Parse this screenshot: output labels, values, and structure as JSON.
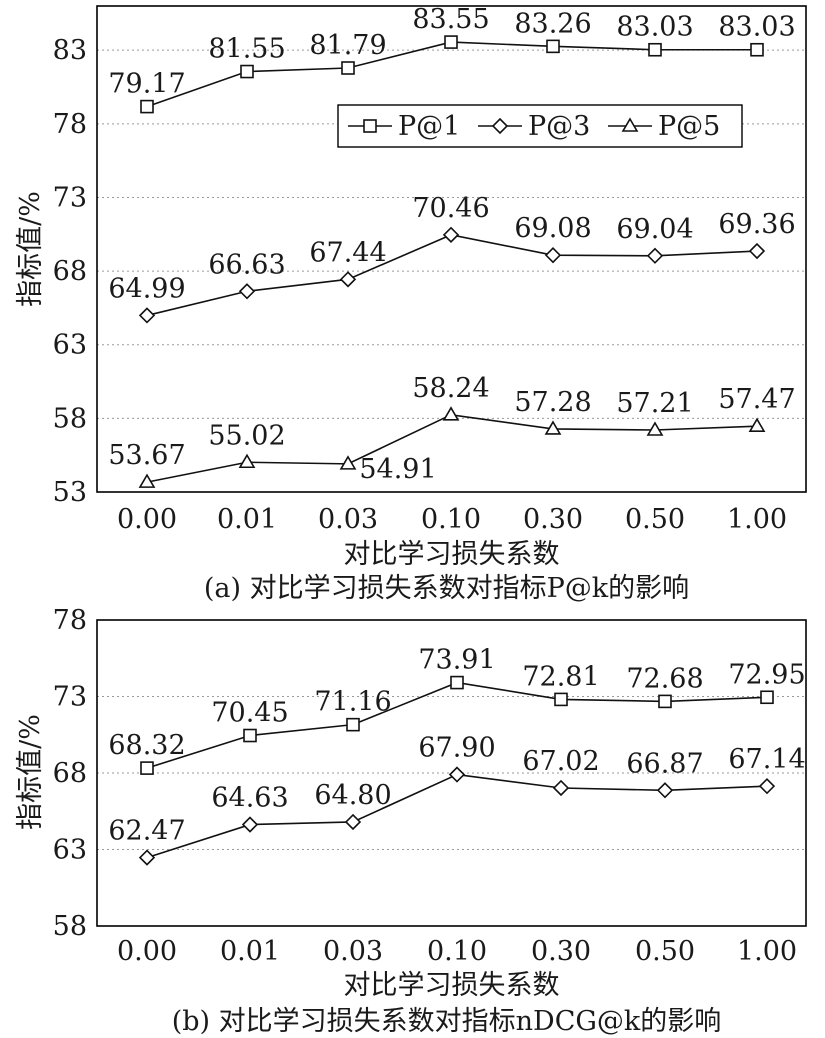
{
  "chart_data": [
    {
      "type": "line",
      "categories": [
        "0.00",
        "0.01",
        "0.03",
        "0.10",
        "0.30",
        "0.50",
        "1.00"
      ],
      "series": [
        {
          "name": "P@1",
          "marker": "square",
          "values": [
            79.17,
            81.55,
            81.79,
            83.55,
            83.26,
            83.03,
            83.03
          ]
        },
        {
          "name": "P@3",
          "marker": "diamond",
          "values": [
            64.99,
            66.63,
            67.44,
            70.46,
            69.08,
            69.04,
            69.36
          ]
        },
        {
          "name": "P@5",
          "marker": "triangle",
          "values": [
            53.67,
            55.02,
            54.91,
            58.24,
            57.28,
            57.21,
            57.47
          ]
        }
      ],
      "data_labels": [
        [
          "79.17",
          "81.55",
          "81.79",
          "83.55",
          "83.26",
          "83.03",
          "83.03"
        ],
        [
          "64.99",
          "66.63",
          "67.44",
          "70.46",
          "69.08",
          "69.04",
          "69.36"
        ],
        [
          "53.67",
          "55.02",
          "54.91",
          "58.24",
          "57.28",
          "57.21",
          "57.47"
        ]
      ],
      "yticks": [
        "53",
        "58",
        "63",
        "68",
        "73",
        "78",
        "83"
      ],
      "ylim": [
        53,
        86
      ],
      "xlabel": "对比学习损失系数",
      "ylabel": "指标值/%",
      "caption": "(a) 对比学习损失系数对指标P@k的影响",
      "grid": "horizontal dotted",
      "legend": "top-right"
    },
    {
      "type": "line",
      "categories": [
        "0.00",
        "0.01",
        "0.03",
        "0.10",
        "0.30",
        "0.50",
        "1.00"
      ],
      "series": [
        {
          "marker": "square",
          "values": [
            68.32,
            70.45,
            71.16,
            73.91,
            72.81,
            72.68,
            72.95
          ]
        },
        {
          "marker": "diamond",
          "values": [
            62.47,
            64.63,
            64.8,
            67.9,
            67.02,
            66.87,
            67.14
          ]
        }
      ],
      "data_labels": [
        [
          "68.32",
          "70.45",
          "71.16",
          "73.91",
          "72.81",
          "72.68",
          "72.95"
        ],
        [
          "62.47",
          "64.63",
          "64.80",
          "67.90",
          "67.02",
          "66.87",
          "67.14"
        ]
      ],
      "yticks": [
        "58",
        "63",
        "68",
        "73",
        "78"
      ],
      "ylim": [
        58,
        78
      ],
      "xlabel": "对比学习损失系数",
      "ylabel": "指标值/%",
      "caption": "(b) 对比学习损失系数对指标nDCG@k的影响",
      "grid": "horizontal dotted",
      "legend": "none"
    }
  ]
}
